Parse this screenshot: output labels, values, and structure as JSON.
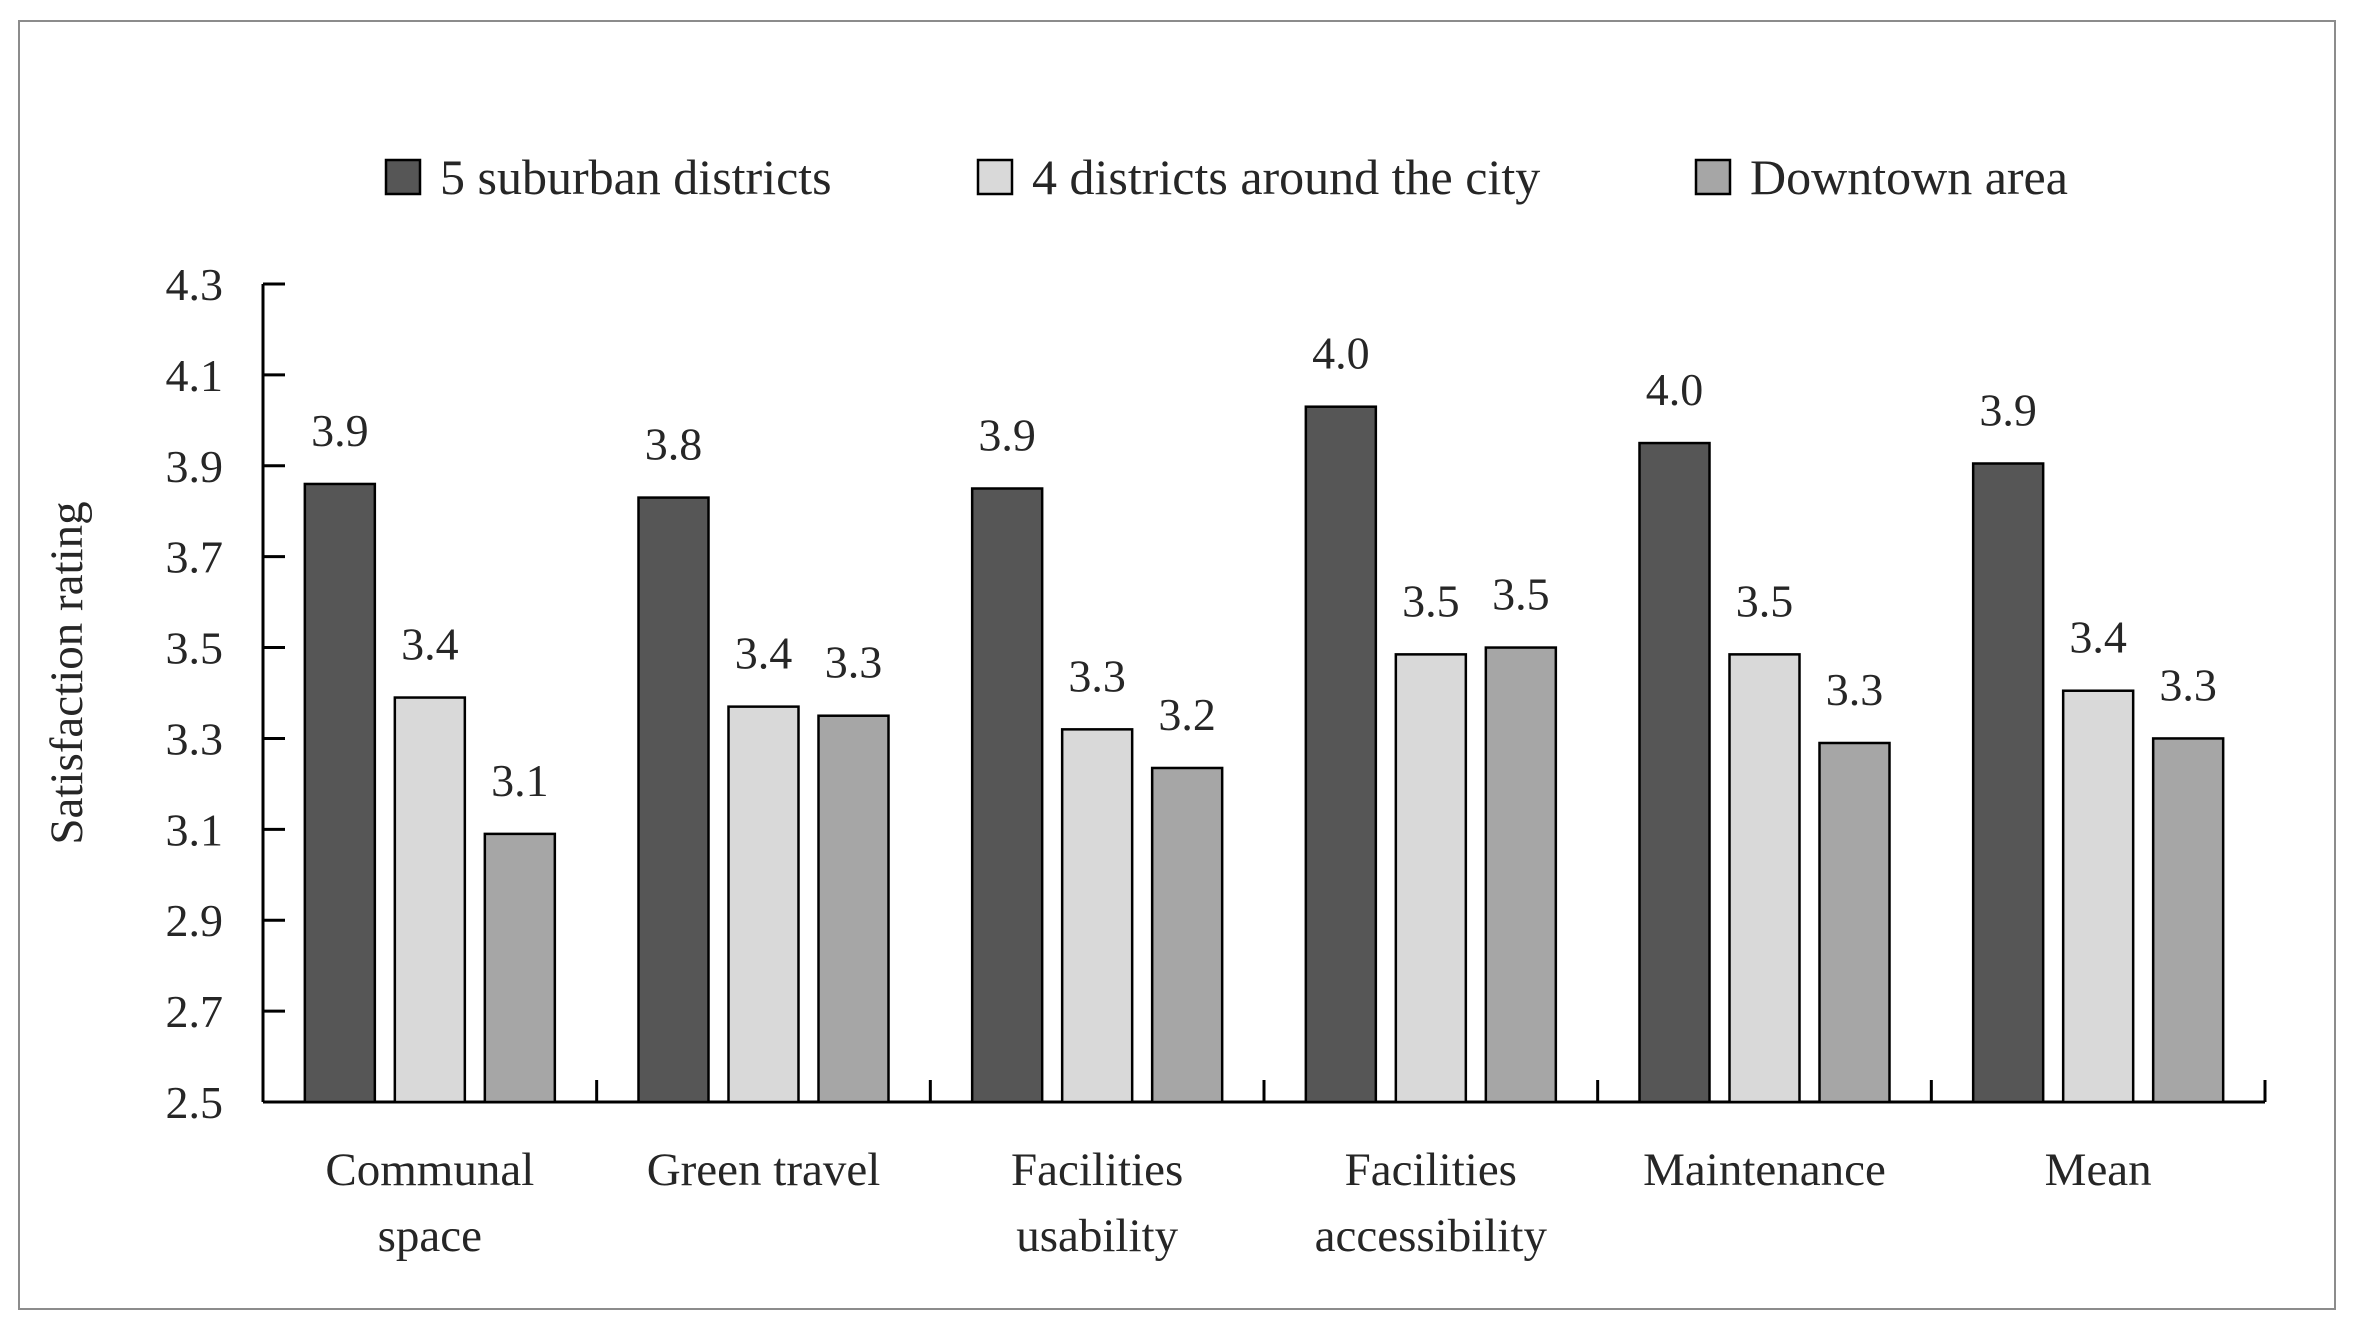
{
  "chart_data": {
    "type": "bar",
    "title": "",
    "xlabel": "",
    "ylabel": "Satisfaction rating",
    "ylim": [
      2.5,
      4.3
    ],
    "yticks": [
      2.5,
      2.7,
      2.9,
      3.1,
      3.3,
      3.5,
      3.7,
      3.9,
      4.1,
      4.3
    ],
    "ytick_labels": [
      "2.5",
      "2.7",
      "2.9",
      "3.1",
      "3.3",
      "3.5",
      "3.7",
      "3.9",
      "4.1",
      "4.3"
    ],
    "categories": [
      [
        "Communal",
        "space"
      ],
      [
        "Green travel"
      ],
      [
        "Facilities",
        "usability"
      ],
      [
        "Facilities",
        "accessibility"
      ],
      [
        "Maintenance"
      ],
      [
        "Mean"
      ]
    ],
    "legend_position": "top-center",
    "grid": false,
    "series": [
      {
        "name": "5 suburban districts",
        "color": "#565656",
        "values": [
          3.86,
          3.83,
          3.85,
          4.03,
          3.95,
          3.905
        ],
        "labels": [
          "3.9",
          "3.8",
          "3.9",
          "4.0",
          "4.0",
          "3.9"
        ]
      },
      {
        "name": "4 districts around the city",
        "color": "#d9d9d9",
        "values": [
          3.39,
          3.37,
          3.32,
          3.485,
          3.485,
          3.405
        ],
        "labels": [
          "3.4",
          "3.4",
          "3.3",
          "3.5",
          "3.5",
          "3.4"
        ]
      },
      {
        "name": "Downtown area",
        "color": "#a6a6a6",
        "values": [
          3.09,
          3.35,
          3.235,
          3.5,
          3.29,
          3.3
        ],
        "labels": [
          "3.1",
          "3.3",
          "3.2",
          "3.5",
          "3.3",
          "3.3"
        ]
      }
    ]
  }
}
